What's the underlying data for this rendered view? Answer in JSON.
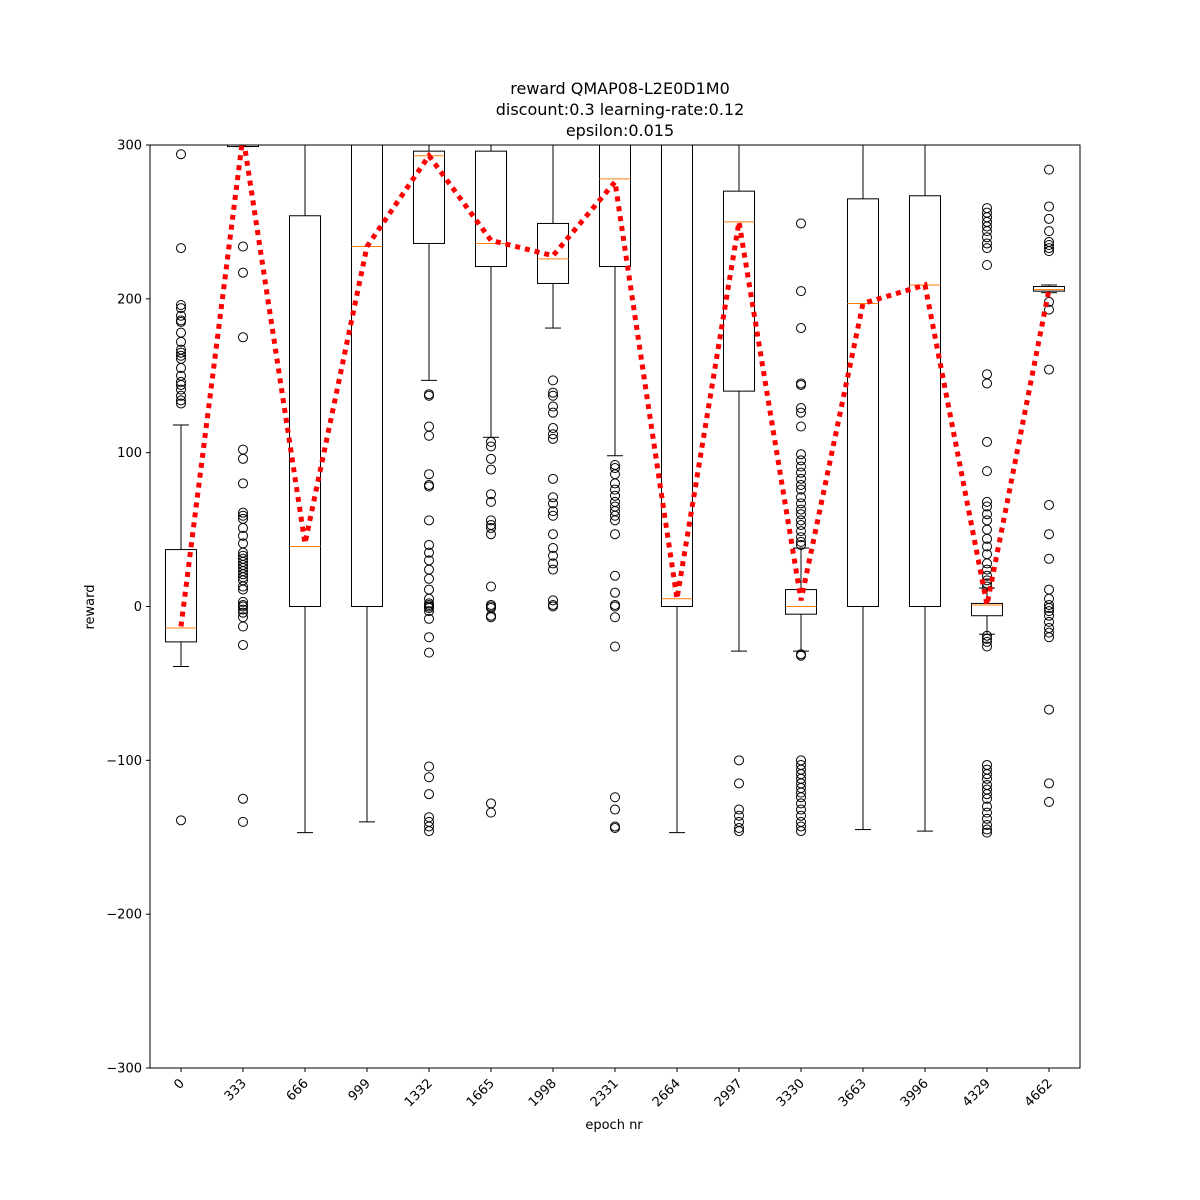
{
  "chart_data": {
    "type": "box",
    "title_lines": [
      "reward QMAP08-L2E0D1M0",
      "discount:0.3 learning-rate:0.12",
      "epsilon:0.015"
    ],
    "xlabel": "epoch nr",
    "ylabel": "reward",
    "ylim": [
      -300,
      300
    ],
    "yticks": [
      -300,
      -200,
      -100,
      0,
      100,
      200,
      300
    ],
    "categories": [
      "0",
      "333",
      "666",
      "999",
      "1332",
      "1665",
      "1998",
      "2331",
      "2664",
      "2997",
      "3330",
      "3663",
      "3996",
      "4329",
      "4662"
    ],
    "boxes": [
      {
        "q1": -23,
        "median": -14,
        "q3": 37,
        "whisker_low": -39,
        "whisker_high": 118,
        "outliers": [
          294,
          233,
          196,
          194,
          189,
          186,
          185,
          178,
          172,
          167,
          165,
          163,
          161,
          155,
          150,
          146,
          144,
          141,
          137,
          134,
          132,
          -139
        ]
      },
      {
        "q1": 299,
        "median": 300,
        "q3": 300,
        "whisker_low": 299,
        "whisker_high": 300,
        "outliers": [
          234,
          217,
          175,
          102,
          96,
          80,
          61,
          59,
          57,
          51,
          46,
          41,
          35,
          33,
          31,
          29,
          27,
          25,
          23,
          21,
          19,
          17,
          13,
          11,
          3,
          1,
          0,
          -2,
          -4,
          -7,
          -13,
          -25,
          -125,
          -140
        ]
      },
      {
        "q1": 0,
        "median": 39,
        "q3": 254,
        "whisker_low": -147,
        "whisker_high": 300,
        "outliers": []
      },
      {
        "q1": 0,
        "median": 234,
        "q3": 300,
        "whisker_low": -140,
        "whisker_high": 300,
        "outliers": []
      },
      {
        "q1": 236,
        "median": 293,
        "q3": 296,
        "whisker_low": 147,
        "whisker_high": 300,
        "outliers": [
          138,
          137,
          117,
          111,
          86,
          79,
          78,
          56,
          40,
          35,
          30,
          24,
          18,
          11,
          5,
          2,
          1,
          0,
          -1,
          -3,
          -8,
          -20,
          -30,
          -104,
          -111,
          -122,
          -137,
          -140,
          -143,
          -146
        ]
      },
      {
        "q1": 221,
        "median": 236,
        "q3": 296,
        "whisker_low": 110,
        "whisker_high": 300,
        "outliers": [
          107,
          104,
          96,
          89,
          73,
          68,
          56,
          53,
          51,
          47,
          13,
          1,
          0,
          -1,
          -6,
          -7,
          -128,
          -134
        ]
      },
      {
        "q1": 210,
        "median": 226,
        "q3": 249,
        "whisker_low": 181,
        "whisker_high": 300,
        "outliers": [
          147,
          139,
          137,
          130,
          126,
          116,
          112,
          109,
          83,
          71,
          67,
          62,
          59,
          47,
          38,
          33,
          28,
          24,
          4,
          1,
          0
        ]
      },
      {
        "q1": 221,
        "median": 278,
        "q3": 300,
        "whisker_low": 98,
        "whisker_high": 300,
        "outliers": [
          92,
          90,
          86,
          80,
          76,
          72,
          68,
          65,
          62,
          59,
          56,
          47,
          20,
          9,
          1,
          0,
          -7,
          -26,
          -124,
          -132,
          -143,
          -144
        ]
      },
      {
        "q1": 0,
        "median": 5,
        "q3": 300,
        "whisker_low": -147,
        "whisker_high": 300,
        "outliers": []
      },
      {
        "q1": 140,
        "median": 250,
        "q3": 270,
        "whisker_low": -29,
        "whisker_high": 300,
        "outliers": [
          -100,
          -115,
          -132,
          -136,
          -140,
          -144,
          -146
        ]
      },
      {
        "q1": -5,
        "median": 0,
        "q3": 11,
        "whisker_low": -29,
        "whisker_high": 38,
        "outliers": [
          249,
          205,
          181,
          145,
          144,
          129,
          126,
          117,
          99,
          95,
          91,
          87,
          83,
          79,
          76,
          71,
          67,
          63,
          60,
          56,
          53,
          49,
          45,
          42,
          40,
          -31,
          -32,
          -100,
          -103,
          -106,
          -109,
          -112,
          -115,
          -118,
          -121,
          -124,
          -128,
          -132,
          -136,
          -140,
          -143,
          -146
        ]
      },
      {
        "q1": 0,
        "median": 197,
        "q3": 265,
        "whisker_low": -145,
        "whisker_high": 300,
        "outliers": []
      },
      {
        "q1": 0,
        "median": 209,
        "q3": 267,
        "whisker_low": -146,
        "whisker_high": 300,
        "outliers": []
      },
      {
        "q1": -6,
        "median": 1,
        "q3": 2,
        "whisker_low": -18,
        "whisker_high": 12,
        "outliers": [
          259,
          256,
          253,
          250,
          247,
          244,
          240,
          236,
          233,
          222,
          151,
          145,
          107,
          88,
          68,
          65,
          60,
          56,
          50,
          44,
          39,
          34,
          28,
          24,
          20,
          17,
          15,
          13,
          -19,
          -21,
          -23,
          -26,
          -103,
          -106,
          -109,
          -112,
          -116,
          -119,
          -122,
          -125,
          -130,
          -134,
          -138,
          -142,
          -145,
          -147
        ]
      },
      {
        "q1": 205,
        "median": 206,
        "q3": 208,
        "whisker_low": 204,
        "whisker_high": 209,
        "outliers": [
          284,
          260,
          252,
          244,
          237,
          235,
          233,
          231,
          198,
          193,
          154,
          66,
          47,
          31,
          11,
          5,
          1,
          -1,
          -3,
          -6,
          -10,
          -14,
          -17,
          -20,
          -67,
          -115,
          -127
        ]
      }
    ],
    "mean_line": {
      "color": "#ff0000",
      "style": "dotted",
      "values": [
        -13,
        306,
        41,
        234,
        293,
        238,
        228,
        276,
        5,
        250,
        4,
        197,
        209,
        1,
        206
      ]
    },
    "colors": {
      "box": "#000000",
      "median": "#ff7f0e",
      "mean": "#ff0000",
      "outlier": "#000000"
    },
    "grid": false
  }
}
